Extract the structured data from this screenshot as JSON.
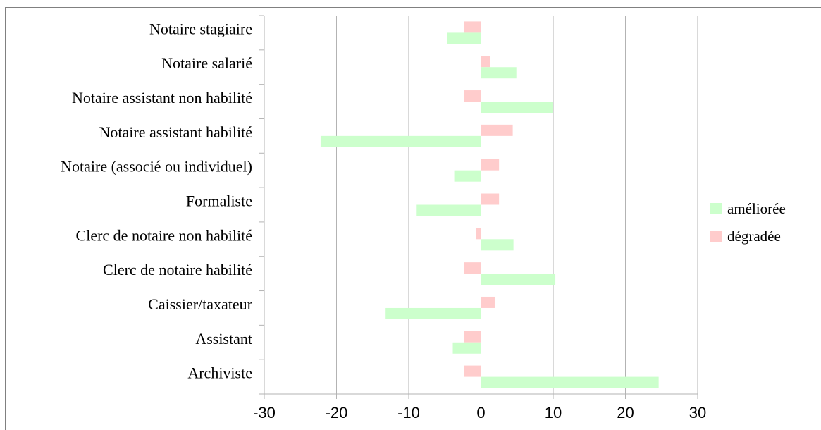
{
  "chart_data": {
    "type": "bar",
    "orientation": "horizontal",
    "categories": [
      "Notaire stagiaire",
      "Notaire salarié",
      "Notaire assistant non habilité",
      "Notaire assistant habilité",
      "Notaire (associé ou individuel)",
      "Formaliste",
      "Clerc de notaire non habilité",
      "Clerc de notaire habilité",
      "Caissier/taxateur",
      "Assistant",
      "Archiviste"
    ],
    "series": [
      {
        "name": "améliorée",
        "color": "#ccffcc",
        "values": [
          -4.7,
          4.9,
          10.0,
          -22.2,
          -3.7,
          -8.9,
          4.5,
          10.3,
          -13.2,
          -3.9,
          24.6
        ]
      },
      {
        "name": "dégradée",
        "color": "#ffcccc",
        "values": [
          -2.3,
          1.3,
          -2.3,
          4.4,
          2.5,
          2.5,
          -0.7,
          -2.3,
          1.9,
          -2.3,
          -2.3
        ]
      }
    ],
    "xlim": [
      -30,
      30
    ],
    "xticks": [
      -30,
      -20,
      -10,
      0,
      10,
      20,
      30
    ],
    "grid": "vertical",
    "legend": "right",
    "title": "",
    "xlabel": "",
    "ylabel": ""
  }
}
